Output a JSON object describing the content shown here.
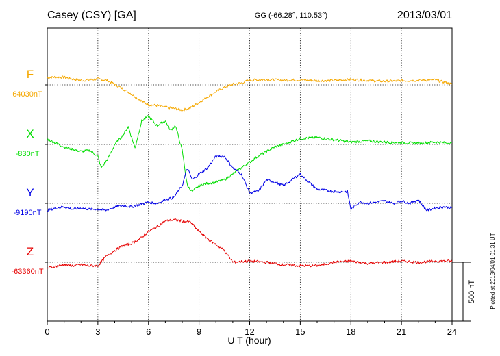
{
  "header": {
    "station": "Casey (CSY)  [GA]",
    "coords": "GG (-66.28°, 110.53°)",
    "date": "2013/03/01"
  },
  "footer_note": "Plotted at 2013/04/01 01:31  UT",
  "chart_data": {
    "type": "line",
    "xlabel": "U T (hour)",
    "xlim": [
      0,
      24
    ],
    "xticks": [
      "0",
      "3",
      "6",
      "9",
      "12",
      "15",
      "18",
      "21",
      "24"
    ],
    "grid": true,
    "scale_bar": {
      "label": "500 nT",
      "value_nT": 500
    },
    "series": [
      {
        "name": "F",
        "baseline_label": "64030nT",
        "color": "#f5a800",
        "x": [
          0,
          0.5,
          1,
          1.5,
          2,
          2.5,
          3,
          3.5,
          4,
          4.5,
          5,
          5.5,
          6,
          6.5,
          7,
          7.5,
          8,
          8.5,
          9,
          9.5,
          10,
          10.5,
          11,
          11.5,
          12,
          13,
          14,
          15,
          16,
          17,
          18,
          19,
          20,
          21,
          22,
          23,
          24
        ],
        "y": [
          60,
          68,
          65,
          48,
          38,
          42,
          50,
          40,
          5,
          -35,
          -78,
          -130,
          -170,
          -175,
          -190,
          -200,
          -215,
          -195,
          -150,
          -100,
          -60,
          -20,
          5,
          15,
          40,
          45,
          40,
          42,
          35,
          38,
          45,
          38,
          30,
          35,
          38,
          42,
          5
        ]
      },
      {
        "name": "X",
        "baseline_label": "-830nT",
        "color": "#00dd00",
        "x": [
          0,
          0.5,
          1,
          1.5,
          2,
          2.5,
          3,
          3.2,
          3.6,
          4,
          4.5,
          4.8,
          5.2,
          5.6,
          6,
          6.5,
          7,
          7.3,
          7.6,
          8,
          8.3,
          8.6,
          9,
          9.5,
          10,
          10.5,
          11,
          11.5,
          12,
          12.5,
          13,
          13.5,
          14,
          15,
          16,
          17,
          18,
          19,
          20,
          21,
          22,
          23,
          24
        ],
        "y": [
          45,
          12,
          -20,
          -40,
          -60,
          -50,
          -100,
          -200,
          -120,
          0,
          80,
          150,
          -30,
          200,
          240,
          160,
          200,
          120,
          160,
          -50,
          -350,
          -400,
          -350,
          -330,
          -320,
          -300,
          -250,
          -200,
          -150,
          -100,
          -60,
          -20,
          0,
          50,
          60,
          40,
          20,
          30,
          20,
          15,
          10,
          20,
          10
        ]
      },
      {
        "name": "Y",
        "baseline_label": "-9190nT",
        "color": "#0000e6",
        "x": [
          0,
          0.5,
          1,
          1.5,
          2,
          2.5,
          3,
          3.5,
          4,
          4.5,
          5,
          5.5,
          6,
          6.5,
          7,
          7.5,
          8,
          8.3,
          8.6,
          9,
          9.5,
          10,
          10.5,
          11,
          11.5,
          12,
          12.5,
          13,
          13.5,
          14,
          14.5,
          15,
          15.5,
          16,
          17,
          17.8,
          18,
          18.5,
          19,
          20,
          20.5,
          21,
          21.5,
          22,
          22.5,
          23,
          23.5,
          24
        ],
        "y": [
          -60,
          -40,
          -30,
          -50,
          -40,
          -50,
          -50,
          -60,
          -30,
          -20,
          -30,
          -10,
          10,
          0,
          30,
          50,
          150,
          300,
          200,
          250,
          300,
          400,
          400,
          300,
          250,
          90,
          100,
          200,
          180,
          150,
          200,
          250,
          180,
          120,
          100,
          100,
          -50,
          10,
          0,
          20,
          0,
          20,
          0,
          30,
          -60,
          -40,
          -30,
          -40
        ]
      },
      {
        "name": "Z",
        "baseline_label": "-63360nT",
        "color": "#e60000",
        "x": [
          0,
          0.5,
          1,
          1.5,
          2,
          2.5,
          3,
          3.5,
          4,
          4.5,
          5,
          5.5,
          6,
          6.5,
          7,
          7.5,
          8,
          8.5,
          9,
          9.5,
          10,
          10.5,
          11,
          12,
          13,
          14,
          15,
          16,
          17,
          18,
          19,
          20,
          21,
          22,
          23,
          24
        ],
        "y": [
          -50,
          -35,
          -20,
          -30,
          -20,
          -30,
          -30,
          50,
          100,
          140,
          160,
          200,
          260,
          300,
          350,
          360,
          350,
          340,
          260,
          200,
          150,
          100,
          0,
          10,
          0,
          -20,
          -30,
          -30,
          0,
          10,
          -10,
          0,
          10,
          0,
          10,
          10
        ]
      }
    ]
  }
}
